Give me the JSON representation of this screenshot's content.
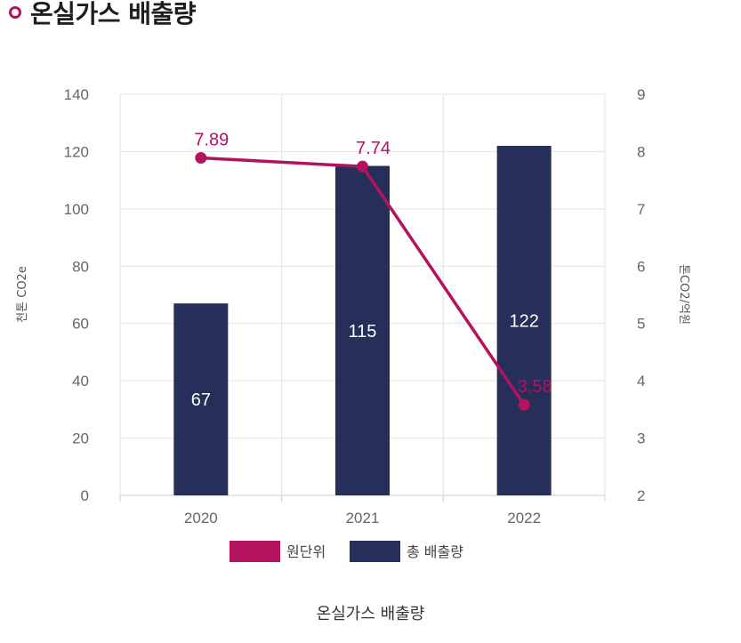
{
  "header": {
    "title": "온실가스 배출량"
  },
  "caption": "온실가스 배출량",
  "colors": {
    "accent": "#b3135e",
    "bar": "#252f59",
    "grid": "#e3e3e3"
  },
  "chart_data": {
    "type": "bar",
    "categories": [
      "2020",
      "2021",
      "2022"
    ],
    "series": [
      {
        "name": "총 배출량",
        "type": "bar",
        "axis": "left",
        "values": [
          67,
          115,
          122
        ],
        "labels": [
          "67",
          "115",
          "122"
        ]
      },
      {
        "name": "원단위",
        "type": "line",
        "axis": "right",
        "values": [
          7.89,
          7.74,
          3.58
        ],
        "labels": [
          "7.89",
          "7.74",
          "3.58"
        ]
      }
    ],
    "ylabel": "천톤 CO2e",
    "y2label": "톤CO2/억원",
    "ylim": [
      0,
      140
    ],
    "y2lim": [
      2,
      9
    ],
    "yticks": [
      "0",
      "20",
      "40",
      "60",
      "80",
      "100",
      "120",
      "140"
    ],
    "y2ticks": [
      "2",
      "3",
      "4",
      "5",
      "6",
      "7",
      "8",
      "9"
    ],
    "legend": [
      {
        "label": "원단위",
        "color": "#b3135e"
      },
      {
        "label": "총 배출량",
        "color": "#252f59"
      }
    ],
    "legend_position": "bottom",
    "grid": true
  }
}
